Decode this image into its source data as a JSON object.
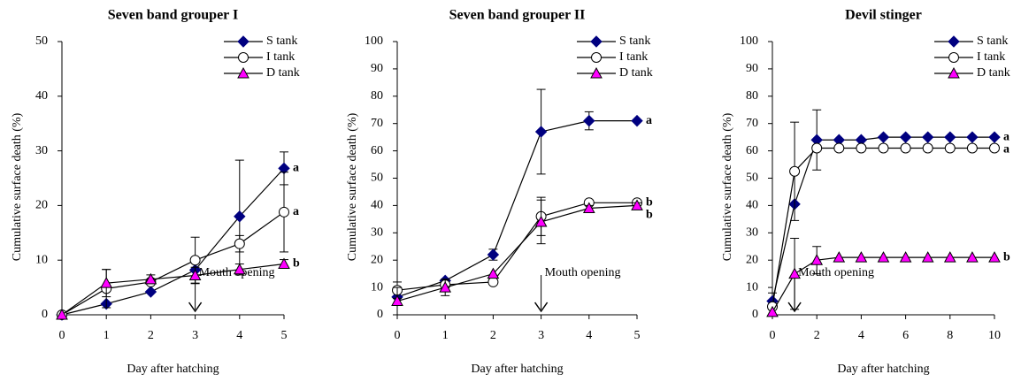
{
  "chart_data": [
    {
      "type": "line",
      "title": "Seven band grouper I",
      "x_label": "Day after hatching",
      "y_label": "Cumulative surface death (%)",
      "x": [
        0,
        1,
        2,
        3,
        4,
        5
      ],
      "xlim": [
        0,
        5
      ],
      "xticks": [
        0,
        1,
        2,
        3,
        4,
        5
      ],
      "ylim": [
        0,
        50
      ],
      "yticks": [
        0,
        10,
        20,
        30,
        40,
        50
      ],
      "legend": "top-right",
      "annotation": {
        "text": "Mouth opening",
        "x": 3
      },
      "series": [
        {
          "name": "S tank",
          "color": "#000080",
          "marker": "diamond",
          "letter": "a",
          "values": [
            0,
            2,
            4.2,
            8.2,
            18,
            26.8
          ],
          "errors": [
            null,
            null,
            null,
            null,
            10.3,
            3
          ]
        },
        {
          "name": "I tank",
          "color": "#ffffff",
          "marker": "circle",
          "letter": "a",
          "values": [
            0,
            4.8,
            6,
            10,
            13,
            18.8
          ],
          "errors": [
            null,
            3.5,
            null,
            4.2,
            1.5,
            7.3
          ]
        },
        {
          "name": "D tank",
          "color": "#ff00ff",
          "marker": "triangle",
          "letter": "b",
          "values": [
            0,
            5.8,
            6.5,
            7.2,
            8.3,
            9.3
          ],
          "errors": [
            null,
            2.5,
            0.8,
            1.5,
            1,
            0.8
          ]
        }
      ]
    },
    {
      "type": "line",
      "title": "Seven band grouper II",
      "x_label": "Day after hatching",
      "y_label": "Cumulative surface death (%)",
      "x": [
        0,
        1,
        2,
        3,
        4,
        5
      ],
      "xlim": [
        0,
        5
      ],
      "xticks": [
        0,
        1,
        2,
        3,
        4,
        5
      ],
      "ylim": [
        0,
        100
      ],
      "yticks": [
        0,
        10,
        20,
        30,
        40,
        50,
        60,
        70,
        80,
        90,
        100
      ],
      "legend": "top-right",
      "annotation": {
        "text": "Mouth opening",
        "x": 3
      },
      "series": [
        {
          "name": "S tank",
          "color": "#000080",
          "marker": "diamond",
          "letter": "a",
          "values": [
            6.5,
            12.5,
            22,
            67,
            71,
            71
          ],
          "errors": [
            null,
            null,
            2,
            15.5,
            3.3,
            null
          ]
        },
        {
          "name": "I tank",
          "color": "#ffffff",
          "marker": "circle",
          "letter": "b",
          "values": [
            9,
            11,
            12,
            36,
            41,
            41
          ],
          "errors": [
            3,
            2,
            null,
            7,
            1,
            1
          ]
        },
        {
          "name": "D tank",
          "color": "#ff00ff",
          "marker": "triangle",
          "letter": "b",
          "values": [
            5,
            10,
            15,
            34,
            39,
            40
          ],
          "errors": [
            5,
            3,
            null,
            8,
            1,
            1
          ]
        }
      ]
    },
    {
      "type": "line",
      "title": "Devil stinger",
      "x_label": "Day after hatching",
      "y_label": "Cumulative surface death (%)",
      "x": [
        0,
        1,
        2,
        3,
        4,
        5,
        6,
        7,
        8,
        9,
        10
      ],
      "xlim": [
        0,
        10
      ],
      "xticks": [
        0,
        2,
        4,
        6,
        8,
        10
      ],
      "ylim": [
        0,
        100
      ],
      "yticks": [
        0,
        10,
        20,
        30,
        40,
        50,
        60,
        70,
        80,
        90,
        100
      ],
      "legend": "top-right",
      "annotation": {
        "text": "Mouth opening",
        "x": 1
      },
      "series": [
        {
          "name": "S tank",
          "color": "#000080",
          "marker": "diamond",
          "letter": "a",
          "values": [
            5,
            40.5,
            64,
            64,
            64,
            65,
            65,
            65,
            65,
            65,
            65
          ],
          "errors": [
            3,
            null,
            11,
            null,
            null,
            null,
            null,
            null,
            null,
            null,
            null
          ]
        },
        {
          "name": "I tank",
          "color": "#ffffff",
          "marker": "circle",
          "letter": "a",
          "values": [
            3,
            52.5,
            61,
            61,
            61,
            61,
            61,
            61,
            61,
            61,
            61
          ],
          "errors": [
            null,
            18,
            null,
            null,
            null,
            null,
            null,
            null,
            null,
            null,
            null
          ]
        },
        {
          "name": "D tank",
          "color": "#ff00ff",
          "marker": "triangle",
          "letter": "b",
          "values": [
            1,
            15,
            20,
            21,
            21,
            21,
            21,
            21,
            21,
            21,
            21
          ],
          "errors": [
            null,
            13,
            5,
            null,
            null,
            null,
            null,
            null,
            null,
            null,
            null
          ]
        }
      ]
    }
  ]
}
